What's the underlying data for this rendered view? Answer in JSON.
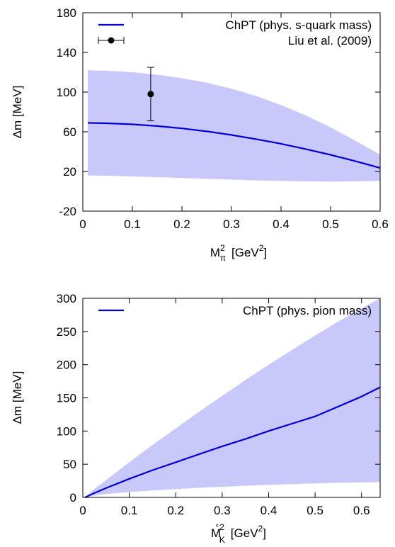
{
  "chart_data": [
    {
      "type": "line",
      "title": "",
      "xlabel": {
        "base": "M",
        "sub": "π",
        "sup": "2",
        "unit_pre": "[GeV",
        "unit_sup": "2",
        "unit_post": "]"
      },
      "ylabel": "Δm  [MeV]",
      "xlim": [
        0,
        0.6
      ],
      "ylim": [
        -20,
        180
      ],
      "xticks": [
        0,
        0.1,
        0.2,
        0.3,
        0.4,
        0.5,
        0.6
      ],
      "xtick_labels": [
        "0",
        "0.1",
        "0.2",
        "0.3",
        "0.4",
        "0.5",
        "0.6"
      ],
      "yticks": [
        -20,
        20,
        60,
        100,
        140,
        180
      ],
      "ytick_labels": [
        "-20",
        "20",
        "60",
        "100",
        "140",
        "180"
      ],
      "legend_position": "top-right",
      "series": [
        {
          "name": "ChPT (phys. s-quark mass)",
          "kind": "line-with-band",
          "color": "#0000dd",
          "band_color": "#c8c8fa",
          "x": [
            0.01,
            0.05,
            0.1,
            0.15,
            0.2,
            0.25,
            0.3,
            0.35,
            0.4,
            0.45,
            0.5,
            0.55,
            0.6
          ],
          "y": [
            69,
            68.6,
            67.5,
            65.8,
            63.4,
            60.4,
            56.8,
            52.6,
            47.9,
            42.6,
            36.8,
            30.4,
            23.5
          ],
          "y_upper": [
            122,
            121.5,
            120,
            117.5,
            114,
            109.5,
            103.5,
            96,
            87,
            76.5,
            64.5,
            51,
            37
          ],
          "y_lower": [
            16,
            15.7,
            15,
            14.2,
            13.4,
            12.6,
            11.8,
            11,
            10.4,
            10,
            9.8,
            10,
            10.5
          ]
        },
        {
          "name": "Liu et al. (2009)",
          "kind": "point-errorbar",
          "color": "#000000",
          "x": [
            0.137
          ],
          "y": [
            98
          ],
          "yerr_low": [
            71
          ],
          "yerr_high": [
            125
          ]
        }
      ]
    },
    {
      "type": "line",
      "title": "",
      "xlabel": {
        "base": "M",
        "ring": "∘",
        "sub": "K",
        "sup": "2",
        "unit_pre": "[GeV",
        "unit_sup": "2",
        "unit_post": "]"
      },
      "ylabel": "Δm  [MeV]",
      "xlim": [
        0,
        0.64
      ],
      "ylim": [
        0,
        300
      ],
      "xticks": [
        0,
        0.1,
        0.2,
        0.3,
        0.4,
        0.5,
        0.6
      ],
      "xtick_labels": [
        "0",
        "0.1",
        "0.2",
        "0.3",
        "0.4",
        "0.5",
        "0.6"
      ],
      "yticks": [
        0,
        50,
        100,
        150,
        200,
        250,
        300
      ],
      "ytick_labels": [
        "0",
        "50",
        "100",
        "150",
        "200",
        "250",
        "300"
      ],
      "legend_position": "top-right",
      "series": [
        {
          "name": "ChPT (phys. pion mass)",
          "kind": "line-with-band",
          "color": "#0000dd",
          "band_color": "#c8c8fa",
          "x": [
            0.005,
            0.02,
            0.05,
            0.1,
            0.15,
            0.2,
            0.25,
            0.3,
            0.35,
            0.4,
            0.45,
            0.5,
            0.55,
            0.6,
            0.64
          ],
          "y": [
            0,
            5,
            14,
            28,
            41,
            53,
            65,
            77,
            88,
            100,
            111,
            122,
            137,
            152,
            166
          ],
          "y_upper": [
            0,
            10,
            26,
            53,
            79,
            104,
            129,
            153,
            177,
            200,
            222,
            244,
            265,
            285,
            300
          ],
          "y_lower": [
            0,
            2.5,
            5,
            8,
            10.5,
            12.5,
            14.5,
            16,
            17.5,
            19,
            20,
            21,
            22,
            22.5,
            23
          ]
        }
      ]
    }
  ]
}
